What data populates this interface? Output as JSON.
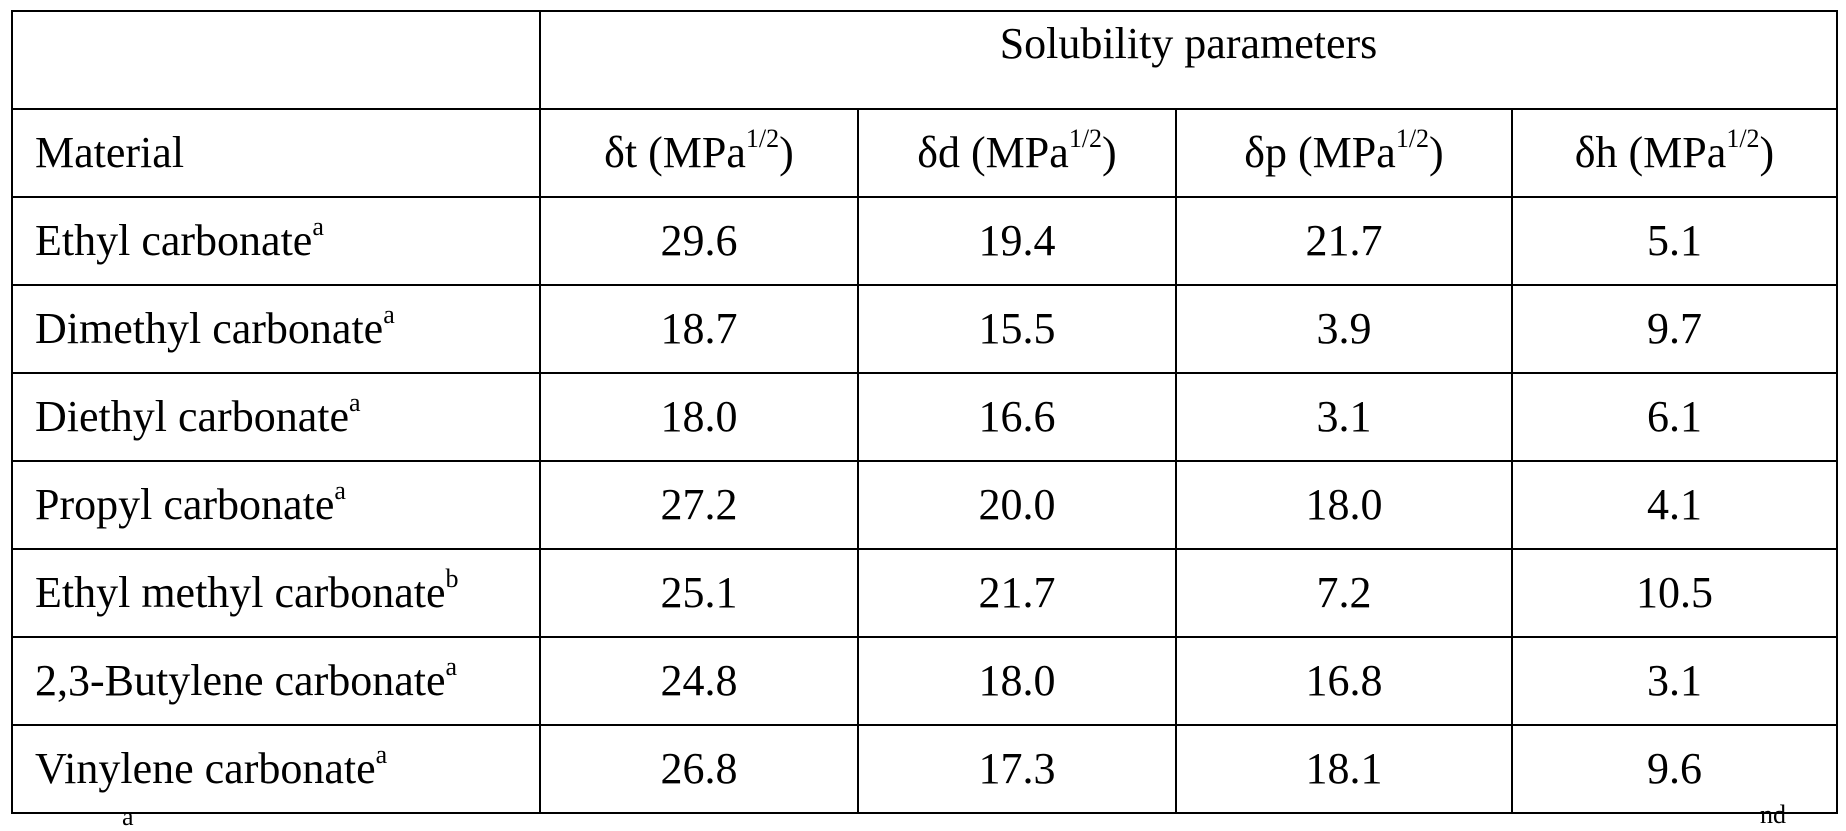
{
  "table": {
    "group_header": "Solubility parameters",
    "material_header": "Material",
    "columns": [
      {
        "symbol": "δt",
        "unit": " (MPa",
        "exp": "1/2",
        "close": ")"
      },
      {
        "symbol": "δd",
        "unit": " (MPa",
        "exp": "1/2",
        "close": ")"
      },
      {
        "symbol": "δp",
        "unit": " (MPa",
        "exp": "1/2",
        "close": ")"
      },
      {
        "symbol": "δh",
        "unit": " (MPa",
        "exp": "1/2",
        "close": ")"
      }
    ],
    "rows": [
      {
        "material": "Ethyl carbonate",
        "note": "a",
        "values": [
          "29.6",
          "19.4",
          "21.7",
          "5.1"
        ]
      },
      {
        "material": "Dimethyl carbonate",
        "note": "a",
        "values": [
          "18.7",
          "15.5",
          "3.9",
          "9.7"
        ]
      },
      {
        "material": "Diethyl carbonate",
        "note": "a",
        "values": [
          "18.0",
          "16.6",
          "3.1",
          "6.1"
        ]
      },
      {
        "material": "Propyl carbonate",
        "note": "a",
        "values": [
          "27.2",
          "20.0",
          "18.0",
          "4.1"
        ]
      },
      {
        "material": "Ethyl methyl carbonate",
        "note": "b",
        "values": [
          "25.1",
          "21.7",
          "7.2",
          "10.5"
        ]
      },
      {
        "material": "2,3-Butylene carbonate",
        "note": "a",
        "values": [
          "24.8",
          "18.0",
          "16.8",
          "3.1"
        ]
      },
      {
        "material": "Vinylene carbonate",
        "note": "a",
        "values": [
          "26.8",
          "17.3",
          "18.1",
          "9.6"
        ]
      }
    ]
  },
  "footer_fragments": {
    "left_mark": "a",
    "right_mark": "nd"
  }
}
